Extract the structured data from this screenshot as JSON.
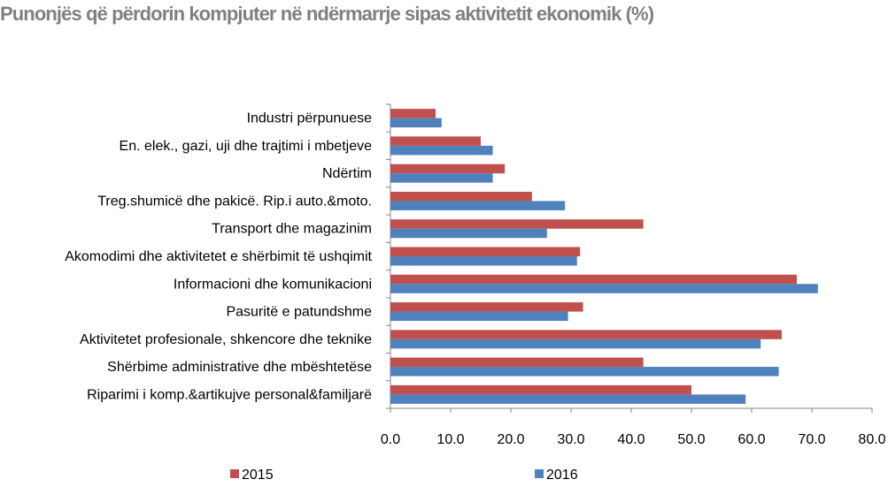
{
  "chart_data": {
    "type": "bar",
    "orientation": "horizontal",
    "title": "Punonjës që përdorin kompjuter në ndërmarrje sipas aktivitetit ekonomik (%)",
    "categories": [
      "Industri përpunuese",
      "En. elek., gazi, uji dhe trajtimi i mbetjeve",
      "Ndërtim",
      "Treg.shumicë dhe pakicë. Rip.i auto.&moto.",
      "Transport dhe magazinim",
      "Akomodimi dhe aktivitetet e shërbimit të ushqimit",
      "Informacioni dhe komunikacioni",
      "Pasuritë e patundshme",
      "Aktivitetet profesionale, shkencore dhe teknike",
      "Shërbime administrative dhe mbështetëse",
      "Riparimi i komp.&artikujve personal&familjarë"
    ],
    "series": [
      {
        "name": "2015",
        "color": "#c0504d",
        "values": [
          7.5,
          15.0,
          19.0,
          23.5,
          42.0,
          31.5,
          67.5,
          32.0,
          65.0,
          42.0,
          50.0
        ]
      },
      {
        "name": "2016",
        "color": "#4f81bd",
        "values": [
          8.5,
          17.0,
          17.0,
          29.0,
          26.0,
          31.0,
          71.0,
          29.5,
          61.5,
          64.5,
          59.0
        ]
      }
    ],
    "xlim": [
      0,
      80
    ],
    "xticks": [
      "0.0",
      "10.0",
      "20.0",
      "30.0",
      "40.0",
      "50.0",
      "60.0",
      "70.0",
      "80.0"
    ],
    "xlabel": "",
    "ylabel": "",
    "grid": false,
    "legend_position": "bottom"
  }
}
